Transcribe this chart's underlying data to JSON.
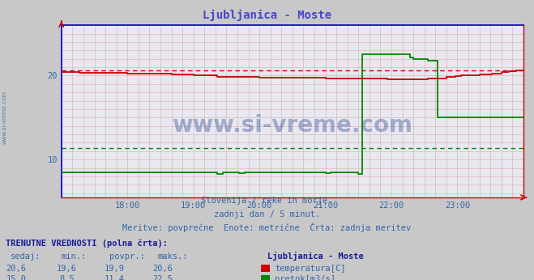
{
  "title": "Ljubljanica - Moste",
  "title_color": "#4444cc",
  "bg_color": "#c8c8c8",
  "plot_bg_color": "#e8e8f0",
  "xlabel": "",
  "ylabel": "",
  "xlim": [
    0,
    252
  ],
  "ylim": [
    5.5,
    26.0
  ],
  "yticks": [
    10,
    20
  ],
  "xtick_labels": [
    "18:00",
    "19:00",
    "20:00",
    "21:00",
    "22:00",
    "23:00"
  ],
  "xtick_positions": [
    36,
    72,
    108,
    144,
    180,
    216
  ],
  "watermark_text": "www.si-vreme.com",
  "sub_text1": "Slovenija / reke in morje.",
  "sub_text2": "zadnji dan / 5 minut.",
  "sub_text3": "Meritve: povprečne  Enote: metrične  Črta: zadnja meritev",
  "temp_color": "#cc0000",
  "flow_color": "#008800",
  "temp_min": 19.6,
  "temp_max": 20.6,
  "temp_avg": 19.9,
  "flow_min": 8.5,
  "flow_max": 22.5,
  "flow_avg": 11.4,
  "legend_title": "Ljubljanica - Moste",
  "table_header": "TRENUTNE VREDNOSTI (polna črta):",
  "col_headers": [
    "sedaj:",
    "min.:",
    "povpr.:",
    "maks.:"
  ],
  "row1_vals": [
    "20,6",
    "19,6",
    "19,9",
    "20,6"
  ],
  "row2_vals": [
    "15,0",
    "8,5",
    "11,4",
    "22,5"
  ],
  "row1_label": "temperatura[C]",
  "row2_label": "pretok[m3/s]"
}
